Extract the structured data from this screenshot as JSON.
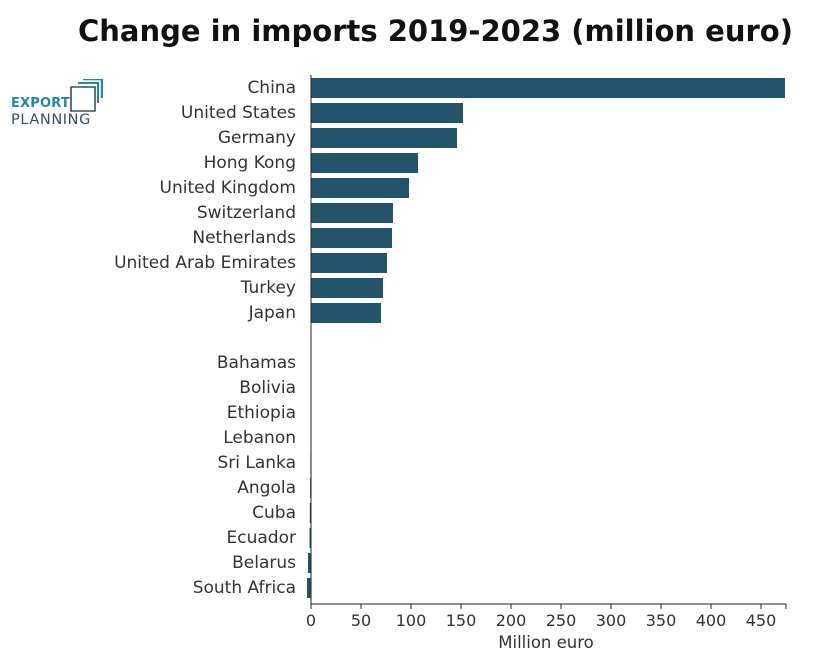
{
  "logo": {
    "line1": "EXPORT",
    "line2": "PLANNING",
    "mark_color": "#1f8aa3",
    "text_color": "#3a4f5e"
  },
  "chart_data": {
    "type": "bar",
    "orientation": "horizontal",
    "title": "Change in imports 2019-2023 (million euro)",
    "xlabel": "Million euro",
    "ylabel": "",
    "bar_color": "#23546b",
    "xlim": [
      0,
      475
    ],
    "xticks": [
      0,
      50,
      100,
      150,
      200,
      250,
      300,
      350,
      400,
      450
    ],
    "grid": false,
    "groups": [
      {
        "categories": [
          "China",
          "United States",
          "Germany",
          "Hong Kong",
          "United Kingdom",
          "Switzerland",
          "Netherlands",
          "United Arab Emirates",
          "Turkey",
          "Japan"
        ],
        "values": [
          474,
          152,
          146,
          107,
          98,
          82,
          81,
          76,
          72,
          70
        ]
      },
      {
        "categories": [
          "Bahamas",
          "Bolivia",
          "Ethiopia",
          "Lebanon",
          "Sri Lanka",
          "Angola",
          "Cuba",
          "Ecuador",
          "Belarus",
          "South Africa"
        ],
        "values": [
          -0.2,
          -0.3,
          -0.4,
          -0.5,
          -0.6,
          -0.9,
          -1.2,
          -1.5,
          -3.0,
          -4.0
        ]
      }
    ]
  }
}
